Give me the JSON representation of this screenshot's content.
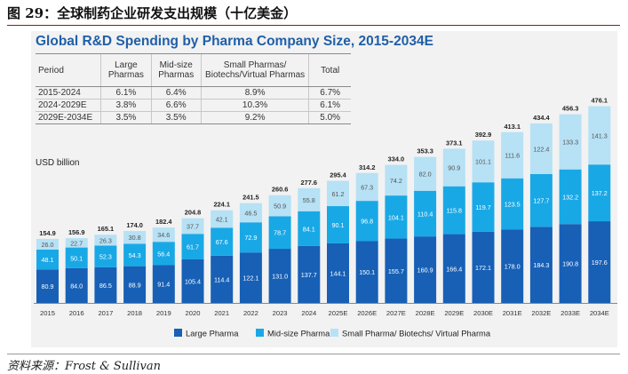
{
  "figure_caption": "图 29：全球制药企业研发支出规模（十亿美金）",
  "source_note": "资料来源：Frost & Sullivan",
  "growth_table": {
    "headers": [
      "Period",
      "Large\nPharmas",
      "Mid-size\nPharmas",
      "Small Pharmas/\nBiotechs/Virtual Pharmas",
      "Total"
    ],
    "rows": [
      [
        "2015-2024",
        "6.1%",
        "6.4%",
        "8.9%",
        "6.7%"
      ],
      [
        "2024-2029E",
        "3.8%",
        "6.6%",
        "10.3%",
        "6.1%"
      ],
      [
        "2029E-2034E",
        "3.5%",
        "3.5%",
        "9.2%",
        "5.0%"
      ]
    ]
  },
  "colors": {
    "large": "#1760b6",
    "mid": "#19a8e6",
    "small": "#b7e1f5",
    "title": "#1f5fa8"
  },
  "chart_data": {
    "type": "bar",
    "stacked": true,
    "title": "Global R&D Spending by Pharma Company Size, 2015-2034E",
    "ylabel": "USD billion",
    "categories": [
      "2015",
      "2016",
      "2017",
      "2018",
      "2019",
      "2020",
      "2021",
      "2022",
      "2023",
      "2024",
      "2025E",
      "2026E",
      "2027E",
      "2028E",
      "2029E",
      "2030E",
      "2031E",
      "2032E",
      "2033E",
      "2034E"
    ],
    "series": [
      {
        "name": "Large Pharma",
        "values": [
          80.9,
          84.0,
          86.5,
          88.9,
          91.4,
          105.4,
          114.4,
          122.1,
          131.0,
          137.7,
          144.1,
          150.1,
          155.7,
          160.9,
          166.4,
          172.1,
          178.0,
          184.3,
          190.8,
          197.6
        ]
      },
      {
        "name": "Mid-size Pharma",
        "values": [
          48.1,
          50.1,
          52.3,
          54.3,
          56.4,
          61.7,
          67.6,
          72.9,
          78.7,
          84.1,
          90.1,
          96.8,
          104.1,
          110.4,
          115.8,
          119.7,
          123.5,
          127.7,
          132.2,
          137.2
        ]
      },
      {
        "name": "Small Pharma/ Biotechs/ Virtual Pharma",
        "values": [
          26.0,
          22.7,
          26.3,
          30.8,
          34.6,
          37.7,
          42.1,
          46.5,
          50.9,
          55.8,
          61.2,
          67.3,
          74.2,
          82.0,
          90.9,
          101.1,
          111.6,
          122.4,
          133.3,
          141.3
        ]
      }
    ],
    "totals": [
      154.9,
      156.9,
      165.1,
      174.0,
      182.4,
      204.8,
      224.1,
      241.5,
      260.6,
      277.6,
      295.4,
      314.2,
      334.0,
      353.3,
      373.1,
      392.9,
      413.1,
      434.4,
      456.3,
      476.1
    ],
    "ylim": [
      0,
      490
    ],
    "legend": "bottom-center"
  }
}
